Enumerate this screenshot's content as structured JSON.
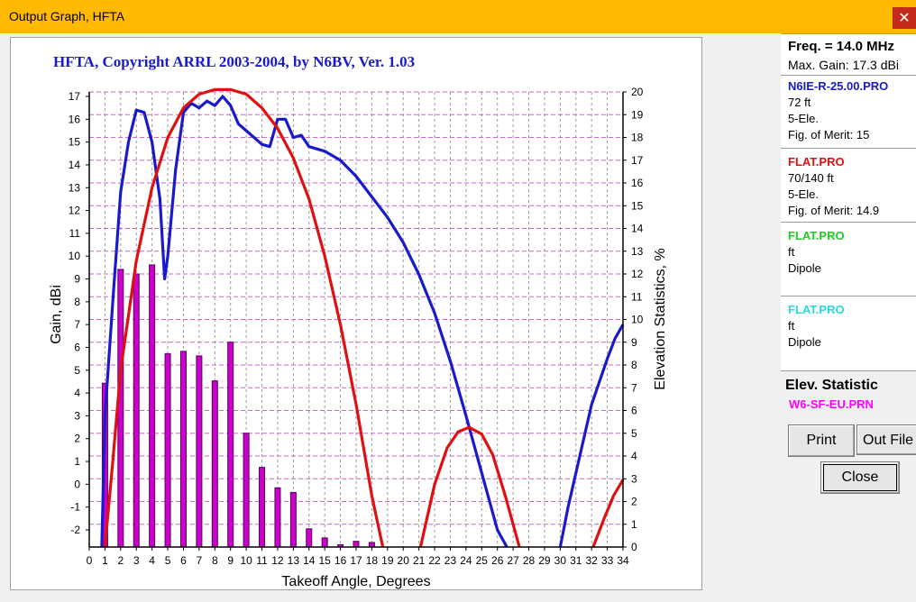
{
  "window": {
    "title": "Output Graph, HFTA",
    "close_glyph": "✕"
  },
  "graph": {
    "header": "HFTA, Copyright ARRL 2003-2004, by N6BV, Ver. 1.03",
    "left_axis_label": "Gain, dBi",
    "right_axis_label": "Elevation Statistics, %",
    "x_axis_label": "Takeoff Angle, Degrees"
  },
  "chart_data": {
    "type": "line",
    "x_range": [
      0,
      34
    ],
    "y_left_range": [
      -3,
      17
    ],
    "y_right_range": [
      0,
      20
    ],
    "x_ticks": [
      0,
      1,
      2,
      3,
      4,
      5,
      6,
      7,
      8,
      9,
      10,
      11,
      12,
      13,
      14,
      15,
      16,
      17,
      18,
      19,
      20,
      21,
      22,
      23,
      24,
      25,
      26,
      27,
      28,
      29,
      30,
      31,
      32,
      33,
      34
    ],
    "y_left_ticks": [
      -2,
      -1,
      0,
      1,
      2,
      3,
      4,
      5,
      6,
      7,
      8,
      9,
      10,
      11,
      12,
      13,
      14,
      15,
      16,
      17
    ],
    "y_right_ticks": [
      0,
      1,
      2,
      3,
      4,
      5,
      6,
      7,
      8,
      9,
      10,
      11,
      12,
      13,
      14,
      15,
      16,
      17,
      18,
      19,
      20
    ],
    "grid": true,
    "colors": {
      "blue_curve": "#1a1acd",
      "red_curve": "#e01010",
      "bars": "#cc00cc",
      "grid_h": "#cc66cc",
      "grid_v": "#999999"
    },
    "series": [
      {
        "name": "N6IE-R-25.00.PRO",
        "axis": "left",
        "points": [
          [
            0.8,
            -3
          ],
          [
            1,
            3
          ],
          [
            1.5,
            8
          ],
          [
            2,
            12.8
          ],
          [
            2.5,
            15
          ],
          [
            3,
            16.4
          ],
          [
            3.5,
            16.3
          ],
          [
            4,
            15
          ],
          [
            4.5,
            12.5
          ],
          [
            4.8,
            9
          ],
          [
            5,
            10
          ],
          [
            5.5,
            13.8
          ],
          [
            6,
            16.3
          ],
          [
            6.5,
            16.7
          ],
          [
            7,
            16.5
          ],
          [
            7.5,
            16.8
          ],
          [
            8,
            16.6
          ],
          [
            8.5,
            17
          ],
          [
            9,
            16.6
          ],
          [
            9.5,
            15.8
          ],
          [
            10,
            15.5
          ],
          [
            10.5,
            15.2
          ],
          [
            11,
            14.9
          ],
          [
            11.5,
            14.8
          ],
          [
            12,
            16
          ],
          [
            12.5,
            16
          ],
          [
            13,
            15.2
          ],
          [
            13.5,
            15.3
          ],
          [
            14,
            14.8
          ],
          [
            15,
            14.6
          ],
          [
            16,
            14.2
          ],
          [
            17,
            13.5
          ],
          [
            18,
            12.6
          ],
          [
            19,
            11.7
          ],
          [
            20,
            10.6
          ],
          [
            21,
            9.2
          ],
          [
            22,
            7.5
          ],
          [
            23,
            5.4
          ],
          [
            24,
            3
          ],
          [
            25,
            0.5
          ],
          [
            26,
            -2
          ],
          [
            26.6,
            -3
          ]
        ]
      },
      {
        "name": "N6IE-R-25.00.PRO",
        "axis": "left",
        "points": [
          [
            30,
            -3
          ],
          [
            30.5,
            -1
          ],
          [
            31,
            0.5
          ],
          [
            31.5,
            2
          ],
          [
            32,
            3.5
          ],
          [
            32.5,
            4.5
          ],
          [
            33,
            5.5
          ],
          [
            33.5,
            6.4
          ],
          [
            34,
            7
          ]
        ]
      },
      {
        "name": "FLAT.PRO",
        "axis": "left",
        "points": [
          [
            1,
            -3
          ],
          [
            1.5,
            1
          ],
          [
            2,
            5
          ],
          [
            3,
            9.8
          ],
          [
            4,
            13
          ],
          [
            5,
            15.2
          ],
          [
            6,
            16.5
          ],
          [
            7,
            17.1
          ],
          [
            8,
            17.3
          ],
          [
            9,
            17.3
          ],
          [
            10,
            17.1
          ],
          [
            11,
            16.5
          ],
          [
            12,
            15.6
          ],
          [
            13,
            14.3
          ],
          [
            14,
            12.5
          ],
          [
            15,
            10
          ],
          [
            16,
            7
          ],
          [
            17,
            3.5
          ],
          [
            18,
            -0.5
          ],
          [
            18.7,
            -3
          ]
        ]
      },
      {
        "name": "FLAT.PRO",
        "axis": "left",
        "points": [
          [
            21.1,
            -3
          ],
          [
            22,
            0
          ],
          [
            22.8,
            1.6
          ],
          [
            23.5,
            2.3
          ],
          [
            24.2,
            2.5
          ],
          [
            25,
            2.2
          ],
          [
            25.7,
            1.3
          ],
          [
            26.5,
            -0.5
          ],
          [
            27.4,
            -3
          ]
        ]
      },
      {
        "name": "FLAT.PRO",
        "axis": "left",
        "points": [
          [
            32.1,
            -3
          ],
          [
            32.8,
            -1.5
          ],
          [
            33.4,
            -0.5
          ],
          [
            34,
            0.2
          ]
        ]
      }
    ],
    "bars": {
      "name": "W6-SF-EU.PRN",
      "axis": "right",
      "x": [
        1,
        2,
        3,
        4,
        5,
        6,
        7,
        8,
        9,
        10,
        11,
        12,
        13,
        14,
        15,
        16,
        17,
        18
      ],
      "values": [
        7.2,
        12.2,
        12.0,
        12.4,
        8.5,
        8.6,
        8.4,
        7.3,
        9.0,
        5.0,
        3.5,
        2.6,
        2.4,
        0.8,
        0.4,
        0.1,
        0.25,
        0.2
      ]
    }
  },
  "panel": {
    "freq": "Freq. = 14.0 MHz",
    "max_gain": "Max. Gain: 17.3 dBi",
    "ant1": {
      "name": "N6IE-R-25.00.PRO",
      "height": "72 ft",
      "type": "5-Ele.",
      "merit": "Fig. of Merit:  15",
      "color": "#1a1acd"
    },
    "ant2": {
      "name": "FLAT.PRO",
      "height": "70/140 ft",
      "type": "5-Ele.",
      "merit": "Fig. of Merit:  14.9",
      "color": "#e01010"
    },
    "ant3": {
      "name": "FLAT.PRO",
      "height": "ft",
      "type": "Dipole",
      "color": "#22cc22"
    },
    "ant4": {
      "name": "FLAT.PRO",
      "height": "ft",
      "type": "Dipole",
      "color": "#22dddd"
    },
    "stat_title": "Elev. Statistic",
    "stat_file": "W6-SF-EU.PRN",
    "stat_color": "#ff00ff",
    "print_label": "Print",
    "outfile_label": "Out File",
    "close_label": "Close"
  }
}
